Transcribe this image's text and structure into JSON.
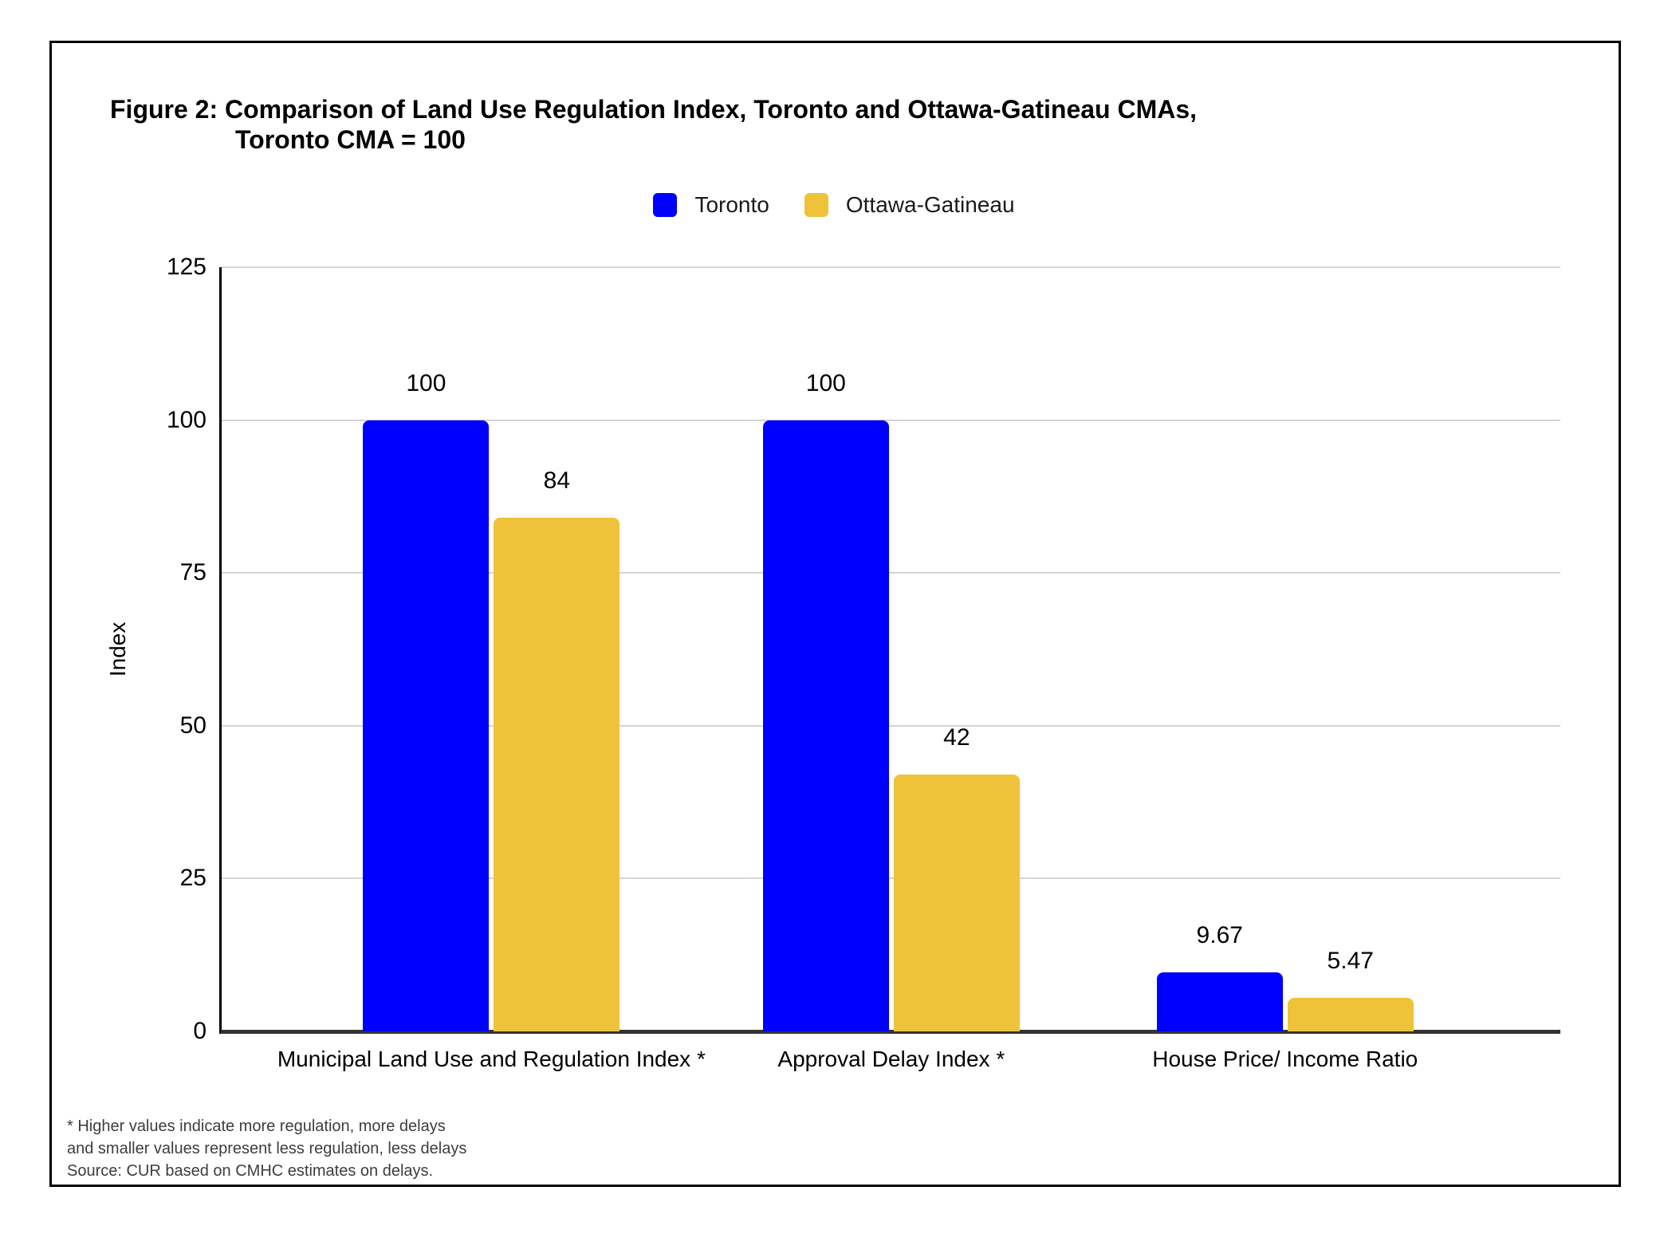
{
  "figure": {
    "title_line1": "Figure 2: Comparison of Land Use Regulation Index, Toronto and Ottawa-Gatineau CMAs,",
    "title_line2": "Toronto CMA = 100"
  },
  "legend": {
    "items": [
      {
        "label": "Toronto",
        "color": "#0000fe"
      },
      {
        "label": "Ottawa-Gatineau",
        "color": "#eec339"
      }
    ]
  },
  "chart_data": {
    "type": "bar",
    "title": "Figure 2: Comparison of Land Use Regulation Index, Toronto and Ottawa-Gatineau CMAs, Toronto CMA = 100",
    "categories": [
      "Municipal Land Use and Regulation Index *",
      "Approval Delay Index *",
      "House Price/ Income Ratio"
    ],
    "series": [
      {
        "name": "Toronto",
        "color": "#0000fe",
        "values": [
          100,
          100,
          9.67
        ],
        "labels": [
          "100",
          "100",
          "9.67"
        ]
      },
      {
        "name": "Ottawa-Gatineau",
        "color": "#eec339",
        "values": [
          84,
          42,
          5.47
        ],
        "labels": [
          "84",
          "42",
          "5.47"
        ]
      }
    ],
    "xlabel": "",
    "ylabel": "Index",
    "yticks": [
      0,
      25,
      50,
      75,
      100,
      125
    ],
    "ylim": [
      0,
      125
    ],
    "grid": true,
    "legend_position": "top"
  },
  "footnote": {
    "line1": "* Higher values indicate more regulation, more delays",
    "line2": "and smaller values represent less regulation, less delays",
    "line3": "Source: CUR based on CMHC estimates on delays."
  }
}
